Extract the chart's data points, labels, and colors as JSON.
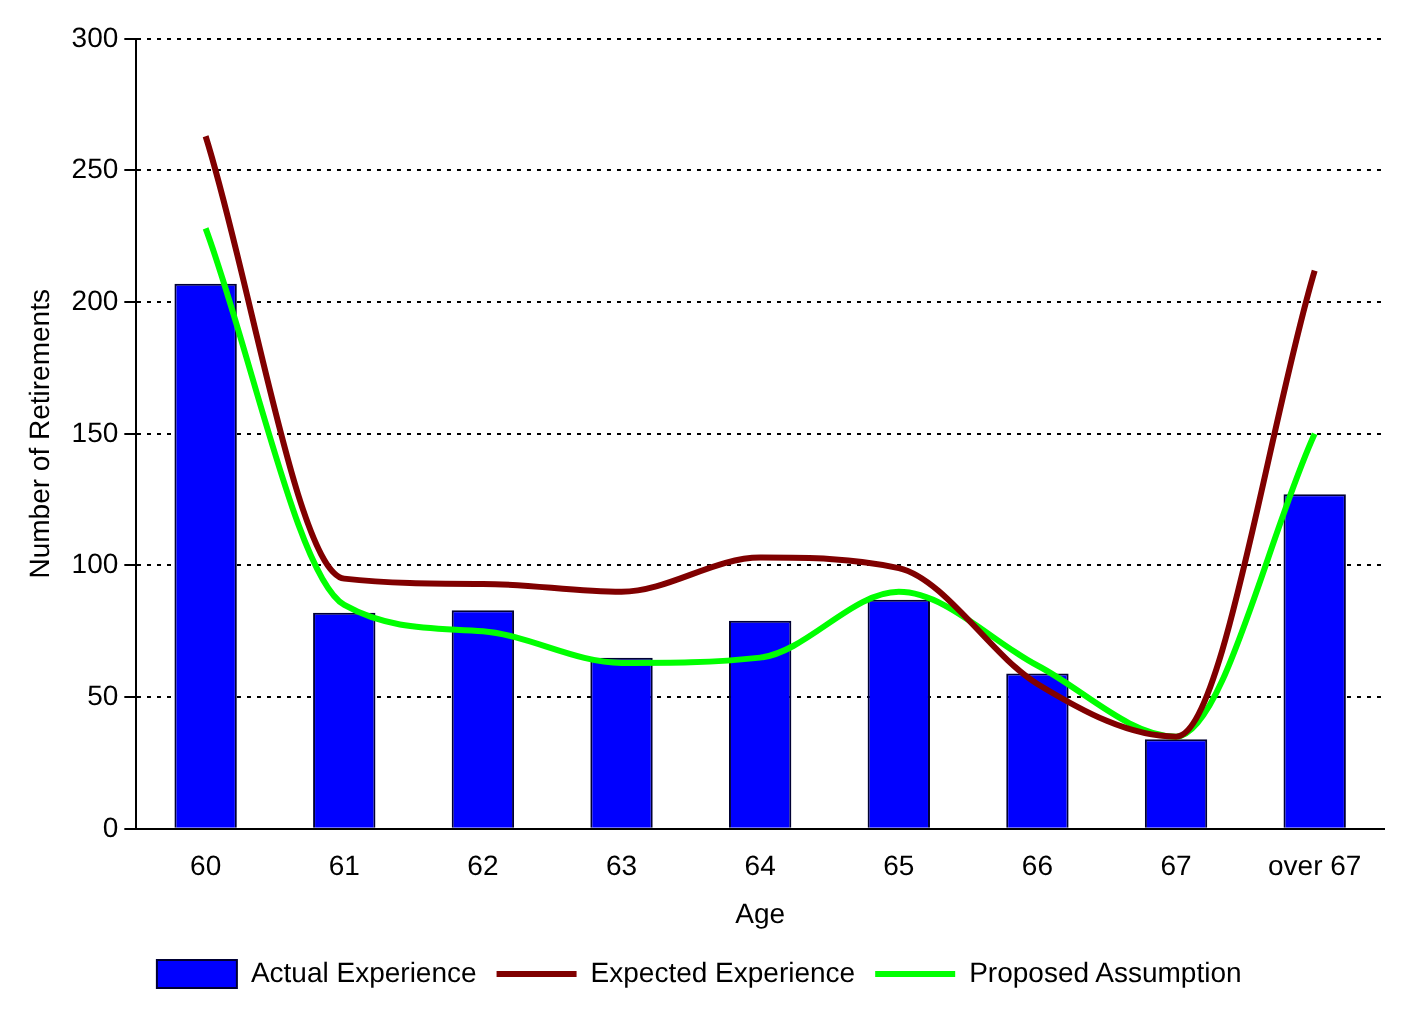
{
  "chart_data": {
    "type": "bar",
    "xlabel": "Age",
    "ylabel": "Number of Retirements",
    "categories": [
      "60",
      "61",
      "62",
      "63",
      "64",
      "65",
      "66",
      "67",
      "over 67"
    ],
    "series": [
      {
        "name": "Actual Experience",
        "color": "#0000ff",
        "values": [
          207,
          82,
          83,
          65,
          79,
          87,
          59,
          34,
          127
        ]
      },
      {
        "name": "Expected Experience",
        "type": "line",
        "color": "#800000",
        "values": [
          263,
          95,
          93,
          90,
          103,
          99,
          55,
          35,
          212
        ]
      },
      {
        "name": "Proposed Assumption",
        "type": "line",
        "color": "#00ff00",
        "values": [
          228,
          85,
          75,
          63,
          65,
          90,
          62,
          35,
          150
        ]
      }
    ],
    "ylim": [
      0,
      300
    ],
    "yticks": [
      0,
      50,
      100,
      150,
      200,
      250,
      300
    ],
    "grid": "y",
    "legend": "bottom",
    "marker": "none",
    "line_style": "solid"
  }
}
